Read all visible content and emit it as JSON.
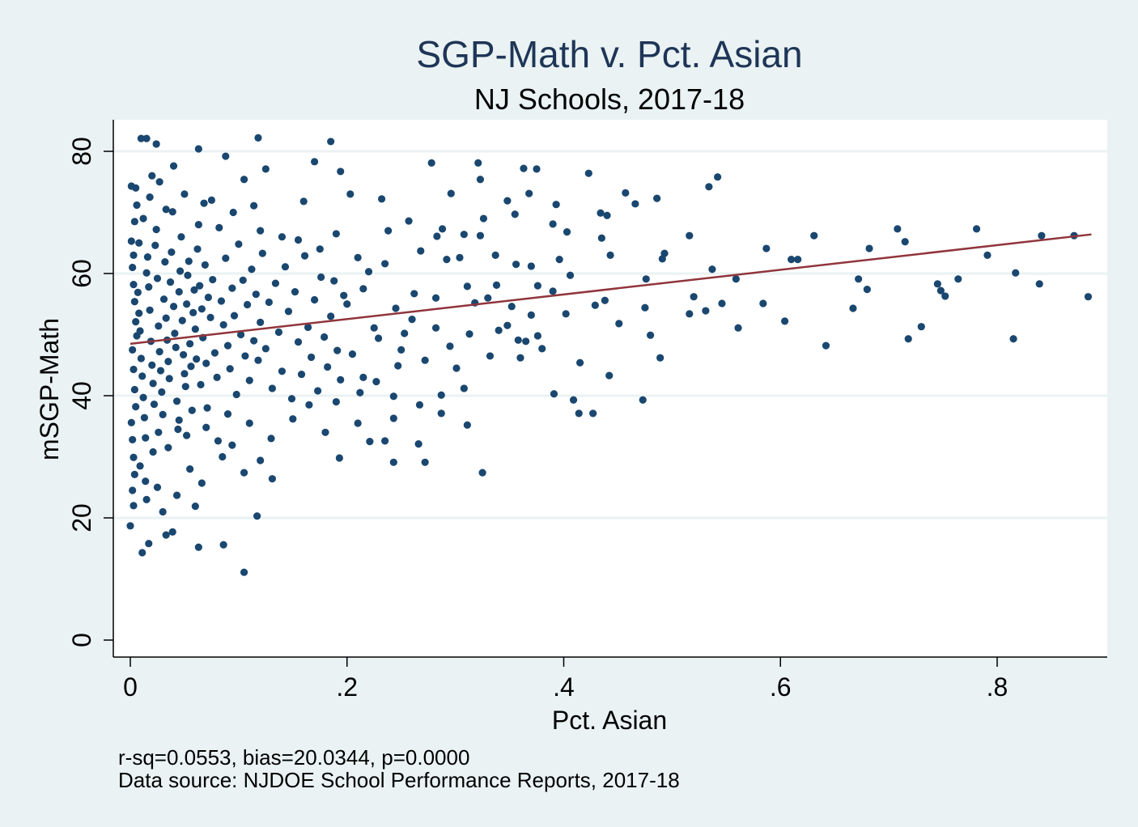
{
  "chart_data": {
    "type": "scatter",
    "title": "SGP-Math v. Pct. Asian",
    "subtitle": "NJ Schools, 2017-18",
    "xlabel": "Pct. Asian",
    "ylabel": "mSGP-Math",
    "xlim": [
      -0.04,
      0.902
    ],
    "ylim": [
      -3,
      85
    ],
    "x_ticks": [
      0,
      0.2,
      0.4,
      0.6,
      0.8
    ],
    "x_tick_labels": [
      "0",
      ".2",
      ".4",
      ".6",
      ".8"
    ],
    "y_ticks": [
      0,
      20,
      40,
      60,
      80
    ],
    "y_tick_labels": [
      "0",
      "20",
      "40",
      "60",
      "80"
    ],
    "grid": "horizontal",
    "notes": [
      "r-sq=0.0553, bias=20.0344, p=0.0000",
      "Data source: NJDOE School Performance Reports, 2017-18"
    ],
    "colors": {
      "points": "#1a476f",
      "fit_line": "#90353b",
      "background": "#eaf2f3",
      "plot": "#ffffff"
    },
    "fit_line": {
      "x": [
        0,
        0.887
      ],
      "y": [
        48.5,
        66.4
      ]
    },
    "points": [
      [
        0.423,
        76.4
      ],
      [
        0.434,
        69.9
      ],
      [
        0.44,
        69.5
      ],
      [
        0.435,
        65.8
      ],
      [
        0.443,
        63.0
      ],
      [
        0.457,
        73.2
      ],
      [
        0.466,
        71.4
      ],
      [
        0.438,
        55.6
      ],
      [
        0.429,
        54.8
      ],
      [
        0.442,
        43.3
      ],
      [
        0.451,
        51.8
      ],
      [
        0.473,
        39.3
      ],
      [
        0.48,
        49.9
      ],
      [
        0.475,
        54.4
      ],
      [
        0.489,
        46.2
      ],
      [
        0.486,
        72.3
      ],
      [
        0.493,
        63.3
      ],
      [
        0.491,
        62.4
      ],
      [
        0.476,
        59.1
      ],
      [
        0.516,
        53.4
      ],
      [
        0.516,
        66.2
      ],
      [
        0.52,
        56.2
      ],
      [
        0.531,
        53.9
      ],
      [
        0.534,
        74.2
      ],
      [
        0.542,
        75.8
      ],
      [
        0.537,
        60.7
      ],
      [
        0.546,
        55.1
      ],
      [
        0.559,
        59.1
      ],
      [
        0.561,
        51.1
      ],
      [
        0.584,
        55.1
      ],
      [
        0.587,
        64.1
      ],
      [
        0.604,
        52.2
      ],
      [
        0.61,
        62.3
      ],
      [
        0.616,
        62.3
      ],
      [
        0.631,
        66.2
      ],
      [
        0.642,
        48.2
      ],
      [
        0.667,
        54.3
      ],
      [
        0.672,
        59.1
      ],
      [
        0.68,
        57.4
      ],
      [
        0.682,
        64.1
      ],
      [
        0.708,
        67.3
      ],
      [
        0.715,
        65.2
      ],
      [
        0.718,
        49.3
      ],
      [
        0.73,
        51.3
      ],
      [
        0.745,
        58.3
      ],
      [
        0.748,
        57.2
      ],
      [
        0.752,
        56.3
      ],
      [
        0.764,
        59.1
      ],
      [
        0.781,
        67.3
      ],
      [
        0.791,
        63.0
      ],
      [
        0.815,
        49.3
      ],
      [
        0.817,
        60.1
      ],
      [
        0.839,
        58.3
      ],
      [
        0.841,
        66.2
      ],
      [
        0.871,
        66.2
      ],
      [
        0.884,
        56.2
      ],
      [
        0.278,
        78.1
      ],
      [
        0.321,
        78.1
      ],
      [
        0.323,
        75.4
      ],
      [
        0.363,
        77.2
      ],
      [
        0.375,
        77.1
      ],
      [
        0.296,
        73.1
      ],
      [
        0.348,
        71.9
      ],
      [
        0.368,
        73.1
      ],
      [
        0.232,
        72.2
      ],
      [
        0.203,
        73.0
      ],
      [
        0.326,
        69.0
      ],
      [
        0.355,
        69.7
      ],
      [
        0.393,
        71.3
      ],
      [
        0.39,
        68.1
      ],
      [
        0.403,
        66.8
      ],
      [
        0.257,
        68.6
      ],
      [
        0.238,
        67.0
      ],
      [
        0.288,
        67.3
      ],
      [
        0.283,
        66.1
      ],
      [
        0.308,
        66.4
      ],
      [
        0.323,
        66.2
      ],
      [
        0.268,
        63.7
      ],
      [
        0.292,
        62.3
      ],
      [
        0.304,
        62.6
      ],
      [
        0.337,
        63.0
      ],
      [
        0.356,
        61.5
      ],
      [
        0.37,
        61.2
      ],
      [
        0.396,
        62.3
      ],
      [
        0.406,
        59.7
      ],
      [
        0.376,
        58.0
      ],
      [
        0.338,
        58.1
      ],
      [
        0.311,
        57.9
      ],
      [
        0.282,
        56.0
      ],
      [
        0.262,
        56.7
      ],
      [
        0.245,
        54.3
      ],
      [
        0.225,
        51.1
      ],
      [
        0.253,
        50.2
      ],
      [
        0.282,
        51.1
      ],
      [
        0.295,
        48.1
      ],
      [
        0.313,
        50.1
      ],
      [
        0.34,
        50.7
      ],
      [
        0.358,
        49.1
      ],
      [
        0.376,
        49.8
      ],
      [
        0.38,
        47.7
      ],
      [
        0.36,
        46.2
      ],
      [
        0.332,
        46.5
      ],
      [
        0.301,
        44.5
      ],
      [
        0.272,
        45.8
      ],
      [
        0.247,
        44.9
      ],
      [
        0.227,
        42.3
      ],
      [
        0.212,
        40.5
      ],
      [
        0.243,
        39.9
      ],
      [
        0.267,
        38.5
      ],
      [
        0.287,
        40.1
      ],
      [
        0.308,
        41.2
      ],
      [
        0.311,
        35.2
      ],
      [
        0.287,
        37.1
      ],
      [
        0.243,
        36.3
      ],
      [
        0.21,
        35.5
      ],
      [
        0.221,
        32.5
      ],
      [
        0.235,
        32.6
      ],
      [
        0.266,
        32.1
      ],
      [
        0.243,
        29.1
      ],
      [
        0.272,
        29.1
      ],
      [
        0.325,
        27.4
      ],
      [
        0.391,
        40.3
      ],
      [
        0.409,
        39.3
      ],
      [
        0.414,
        37.1
      ],
      [
        0.427,
        37.1
      ],
      [
        0.415,
        45.4
      ],
      [
        0.365,
        48.9
      ],
      [
        0.348,
        51.5
      ],
      [
        0.402,
        53.4
      ],
      [
        0.39,
        57.1
      ],
      [
        0.318,
        55.2
      ],
      [
        0.33,
        56.0
      ],
      [
        0.352,
        54.6
      ],
      [
        0.37,
        53.2
      ],
      [
        0.26,
        52.5
      ],
      [
        0.22,
        60.3
      ],
      [
        0.21,
        62.6
      ],
      [
        0.235,
        61.6
      ],
      [
        0.215,
        57.5
      ],
      [
        0.2,
        55.0
      ],
      [
        0.25,
        47.5
      ],
      [
        0.229,
        49.4
      ],
      [
        0.205,
        46.8
      ],
      [
        0.215,
        43.0
      ],
      [
        0.01,
        82.1
      ],
      [
        0.015,
        82.1
      ],
      [
        0.024,
        81.2
      ],
      [
        0.118,
        82.2
      ],
      [
        0.185,
        81.6
      ],
      [
        0.063,
        80.4
      ],
      [
        0.088,
        79.2
      ],
      [
        0.17,
        78.3
      ],
      [
        0.194,
        76.7
      ],
      [
        0.125,
        77.1
      ],
      [
        0.105,
        75.4
      ],
      [
        0.04,
        77.6
      ],
      [
        0.001,
        74.3
      ],
      [
        0.114,
        71.1
      ],
      [
        0.16,
        71.8
      ],
      [
        0.0,
        18.7
      ],
      [
        0.011,
        14.3
      ],
      [
        0.105,
        11.1
      ],
      [
        0.086,
        15.6
      ],
      [
        0.063,
        15.2
      ],
      [
        0.117,
        20.3
      ],
      [
        0.033,
        17.2
      ],
      [
        0.039,
        17.7
      ],
      [
        0.017,
        15.8
      ],
      [
        0.06,
        21.9
      ],
      [
        0.066,
        25.7
      ],
      [
        0.043,
        23.7
      ],
      [
        0.131,
        26.4
      ],
      [
        0.105,
        27.4
      ],
      [
        0.12,
        29.4
      ],
      [
        0.193,
        29.8
      ],
      [
        0.094,
        31.9
      ],
      [
        0.081,
        32.6
      ],
      [
        0.002,
        61.0
      ],
      [
        0.003,
        58.2
      ],
      [
        0.004,
        55.4
      ],
      [
        0.005,
        52.1
      ],
      [
        0.006,
        49.8
      ],
      [
        0.002,
        47.5
      ],
      [
        0.003,
        44.3
      ],
      [
        0.004,
        41.0
      ],
      [
        0.005,
        38.2
      ],
      [
        0.001,
        35.6
      ],
      [
        0.002,
        32.8
      ],
      [
        0.003,
        29.9
      ],
      [
        0.004,
        27.1
      ],
      [
        0.002,
        24.5
      ],
      [
        0.003,
        22.0
      ],
      [
        0.001,
        65.3
      ],
      [
        0.004,
        68.5
      ],
      [
        0.006,
        71.2
      ],
      [
        0.003,
        63.0
      ],
      [
        0.007,
        56.9
      ],
      [
        0.008,
        53.5
      ],
      [
        0.009,
        50.6
      ],
      [
        0.01,
        46.1
      ],
      [
        0.011,
        43.2
      ],
      [
        0.012,
        39.7
      ],
      [
        0.013,
        36.4
      ],
      [
        0.014,
        33.1
      ],
      [
        0.015,
        60.1
      ],
      [
        0.016,
        62.7
      ],
      [
        0.017,
        57.8
      ],
      [
        0.018,
        54.0
      ],
      [
        0.019,
        48.9
      ],
      [
        0.02,
        45.0
      ],
      [
        0.021,
        42.0
      ],
      [
        0.022,
        38.6
      ],
      [
        0.023,
        64.6
      ],
      [
        0.024,
        67.2
      ],
      [
        0.025,
        59.2
      ],
      [
        0.026,
        51.4
      ],
      [
        0.027,
        47.2
      ],
      [
        0.028,
        44.1
      ],
      [
        0.029,
        40.6
      ],
      [
        0.03,
        36.9
      ],
      [
        0.031,
        55.8
      ],
      [
        0.032,
        61.9
      ],
      [
        0.033,
        52.7
      ],
      [
        0.034,
        49.1
      ],
      [
        0.035,
        45.6
      ],
      [
        0.036,
        42.8
      ],
      [
        0.037,
        58.6
      ],
      [
        0.038,
        63.5
      ],
      [
        0.039,
        70.1
      ],
      [
        0.04,
        54.6
      ],
      [
        0.041,
        50.2
      ],
      [
        0.042,
        47.9
      ],
      [
        0.043,
        39.1
      ],
      [
        0.044,
        34.5
      ],
      [
        0.045,
        57.0
      ],
      [
        0.046,
        60.4
      ],
      [
        0.047,
        66.0
      ],
      [
        0.048,
        52.3
      ],
      [
        0.049,
        46.7
      ],
      [
        0.05,
        43.6
      ],
      [
        0.051,
        41.5
      ],
      [
        0.052,
        55.0
      ],
      [
        0.053,
        59.7
      ],
      [
        0.054,
        62.0
      ],
      [
        0.055,
        48.5
      ],
      [
        0.056,
        44.8
      ],
      [
        0.057,
        37.6
      ],
      [
        0.058,
        53.6
      ],
      [
        0.059,
        57.3
      ],
      [
        0.06,
        50.9
      ],
      [
        0.061,
        46.0
      ],
      [
        0.062,
        64.0
      ],
      [
        0.063,
        68.0
      ],
      [
        0.064,
        58.0
      ],
      [
        0.065,
        41.8
      ],
      [
        0.066,
        54.2
      ],
      [
        0.067,
        49.5
      ],
      [
        0.068,
        71.5
      ],
      [
        0.069,
        61.4
      ],
      [
        0.07,
        45.3
      ],
      [
        0.071,
        38.0
      ],
      [
        0.072,
        56.1
      ],
      [
        0.074,
        52.8
      ],
      [
        0.076,
        59.0
      ],
      [
        0.078,
        47.0
      ],
      [
        0.08,
        43.0
      ],
      [
        0.082,
        67.5
      ],
      [
        0.084,
        55.5
      ],
      [
        0.086,
        51.6
      ],
      [
        0.088,
        62.5
      ],
      [
        0.09,
        48.2
      ],
      [
        0.092,
        44.4
      ],
      [
        0.094,
        57.6
      ],
      [
        0.096,
        53.1
      ],
      [
        0.098,
        40.2
      ],
      [
        0.1,
        64.8
      ],
      [
        0.102,
        50.0
      ],
      [
        0.104,
        58.9
      ],
      [
        0.106,
        46.5
      ],
      [
        0.108,
        54.9
      ],
      [
        0.11,
        42.5
      ],
      [
        0.112,
        60.7
      ],
      [
        0.114,
        49.0
      ],
      [
        0.116,
        56.6
      ],
      [
        0.118,
        45.8
      ],
      [
        0.12,
        52.0
      ],
      [
        0.122,
        63.3
      ],
      [
        0.125,
        47.7
      ],
      [
        0.128,
        55.3
      ],
      [
        0.131,
        41.2
      ],
      [
        0.134,
        58.4
      ],
      [
        0.137,
        50.4
      ],
      [
        0.14,
        44.0
      ],
      [
        0.143,
        61.1
      ],
      [
        0.146,
        53.8
      ],
      [
        0.149,
        39.5
      ],
      [
        0.152,
        57.0
      ],
      [
        0.155,
        48.8
      ],
      [
        0.158,
        43.5
      ],
      [
        0.161,
        62.9
      ],
      [
        0.164,
        51.2
      ],
      [
        0.167,
        46.3
      ],
      [
        0.17,
        55.7
      ],
      [
        0.173,
        40.8
      ],
      [
        0.176,
        59.4
      ],
      [
        0.179,
        49.6
      ],
      [
        0.182,
        44.7
      ],
      [
        0.185,
        53.0
      ],
      [
        0.188,
        58.8
      ],
      [
        0.191,
        47.4
      ],
      [
        0.194,
        42.6
      ],
      [
        0.197,
        56.4
      ],
      [
        0.008,
        65.0
      ],
      [
        0.012,
        69.0
      ],
      [
        0.018,
        72.5
      ],
      [
        0.027,
        75.0
      ],
      [
        0.033,
        70.5
      ],
      [
        0.009,
        28.5
      ],
      [
        0.014,
        26.0
      ],
      [
        0.021,
        30.8
      ],
      [
        0.026,
        34.0
      ],
      [
        0.035,
        31.5
      ],
      [
        0.045,
        36.0
      ],
      [
        0.052,
        33.5
      ],
      [
        0.07,
        34.8
      ],
      [
        0.09,
        37.0
      ],
      [
        0.11,
        35.5
      ],
      [
        0.13,
        33.0
      ],
      [
        0.15,
        36.2
      ],
      [
        0.165,
        38.5
      ],
      [
        0.18,
        34.0
      ],
      [
        0.19,
        39.0
      ],
      [
        0.005,
        74.0
      ],
      [
        0.02,
        76.0
      ],
      [
        0.05,
        73.0
      ],
      [
        0.075,
        72.0
      ],
      [
        0.095,
        70.0
      ],
      [
        0.12,
        67.0
      ],
      [
        0.14,
        66.0
      ],
      [
        0.155,
        65.5
      ],
      [
        0.175,
        64.0
      ],
      [
        0.19,
        66.5
      ],
      [
        0.03,
        21.0
      ],
      [
        0.025,
        25.0
      ],
      [
        0.015,
        23.0
      ],
      [
        0.055,
        28.0
      ],
      [
        0.085,
        30.0
      ]
    ]
  }
}
